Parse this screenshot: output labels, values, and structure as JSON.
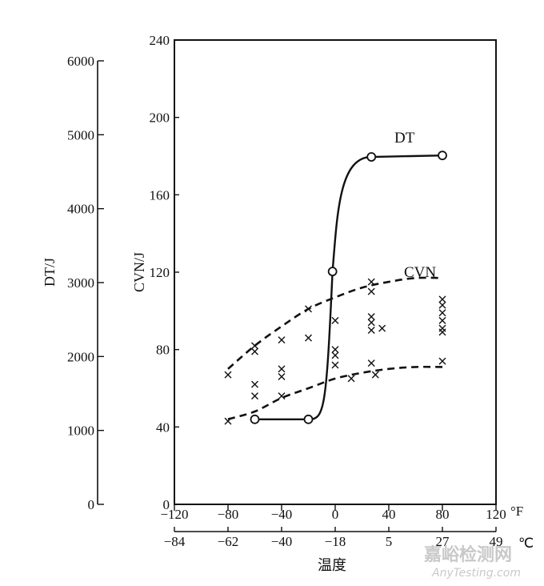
{
  "chart_data": {
    "type": "line",
    "x_unit_f": "°F",
    "x_unit_c": "℃",
    "x_ticks_f": [
      "−120",
      "−80",
      "−40",
      "0",
      "40",
      "80",
      "120"
    ],
    "x_ticks_c": [
      "−84",
      "−62",
      "−40",
      "−18",
      "5",
      "27",
      "49"
    ],
    "xlabel": "温度",
    "ylabel_left": "DT/J",
    "ylabel_right": "CVN/J",
    "y_left_ticks": [
      "0",
      "1000",
      "2000",
      "3000",
      "4000",
      "5000",
      "6000"
    ],
    "y_right_ticks": [
      "0",
      "40",
      "80",
      "120",
      "160",
      "200",
      "240"
    ],
    "xlim_f": [
      -120,
      120
    ],
    "ylim_left": [
      0,
      6000
    ],
    "ylim_right": [
      0,
      240
    ],
    "grid": false,
    "series": [
      {
        "name": "DT",
        "axis": "left",
        "markers": "open-circle",
        "points": [
          {
            "x": -60,
            "y": 1150
          },
          {
            "x": -20,
            "y": 1150
          },
          {
            "x": -2,
            "y": 3150
          },
          {
            "x": 27,
            "y": 4700
          },
          {
            "x": 80,
            "y": 4720
          }
        ]
      },
      {
        "name": "CVN",
        "axis": "right",
        "style": "dashed band",
        "upper": [
          {
            "x": -80,
            "y": 70
          },
          {
            "x": -60,
            "y": 82
          },
          {
            "x": -40,
            "y": 92
          },
          {
            "x": -20,
            "y": 101
          },
          {
            "x": 0,
            "y": 107
          },
          {
            "x": 20,
            "y": 112
          },
          {
            "x": 40,
            "y": 115
          },
          {
            "x": 60,
            "y": 117
          },
          {
            "x": 80,
            "y": 117
          }
        ],
        "lower": [
          {
            "x": -80,
            "y": 44
          },
          {
            "x": -60,
            "y": 48
          },
          {
            "x": -40,
            "y": 55
          },
          {
            "x": -20,
            "y": 60
          },
          {
            "x": 0,
            "y": 65
          },
          {
            "x": 20,
            "y": 68
          },
          {
            "x": 40,
            "y": 70
          },
          {
            "x": 60,
            "y": 71
          },
          {
            "x": 80,
            "y": 71
          }
        ],
        "data_points": [
          {
            "x": -80,
            "y": 67
          },
          {
            "x": -80,
            "y": 43
          },
          {
            "x": -60,
            "y": 82
          },
          {
            "x": -60,
            "y": 79
          },
          {
            "x": -60,
            "y": 62
          },
          {
            "x": -60,
            "y": 56
          },
          {
            "x": -40,
            "y": 85
          },
          {
            "x": -40,
            "y": 70
          },
          {
            "x": -40,
            "y": 66
          },
          {
            "x": -40,
            "y": 56
          },
          {
            "x": -20,
            "y": 101
          },
          {
            "x": -20,
            "y": 86
          },
          {
            "x": 0,
            "y": 95
          },
          {
            "x": 0,
            "y": 80
          },
          {
            "x": 0,
            "y": 77
          },
          {
            "x": 0,
            "y": 72
          },
          {
            "x": 12,
            "y": 65
          },
          {
            "x": 27,
            "y": 115
          },
          {
            "x": 27,
            "y": 110
          },
          {
            "x": 27,
            "y": 97
          },
          {
            "x": 27,
            "y": 94
          },
          {
            "x": 27,
            "y": 90
          },
          {
            "x": 27,
            "y": 73
          },
          {
            "x": 30,
            "y": 67
          },
          {
            "x": 35,
            "y": 91
          },
          {
            "x": 80,
            "y": 106
          },
          {
            "x": 80,
            "y": 103
          },
          {
            "x": 80,
            "y": 99
          },
          {
            "x": 80,
            "y": 95
          },
          {
            "x": 80,
            "y": 91
          },
          {
            "x": 80,
            "y": 89
          },
          {
            "x": 80,
            "y": 74
          }
        ]
      }
    ]
  },
  "watermark": {
    "cn": "嘉峪检测网",
    "en": "AnyTesting.com"
  }
}
